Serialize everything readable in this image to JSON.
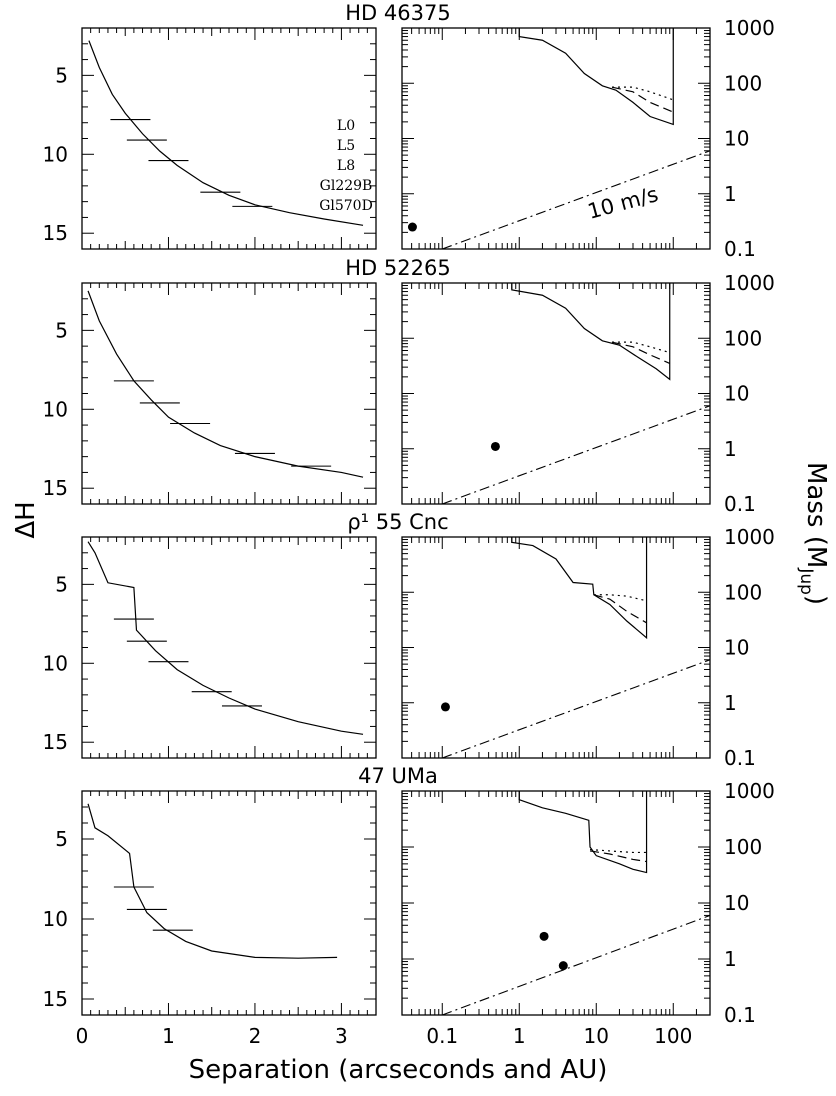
{
  "figure": {
    "ylabel_left": "ΔH",
    "xlabel_bottom": "Separation (arcseconds and AU)",
    "ylabel_right_main": "Mass (M",
    "ylabel_right_sub": "Jup",
    "ylabel_right_close": ")",
    "annotation_10ms": "10 m/s",
    "spectral_labels": [
      "L0",
      "L5",
      "L8",
      "Gl229B",
      "Gl570D"
    ]
  },
  "chart_data": [
    {
      "type": "line",
      "title": "HD 46375",
      "left_panel": {
        "xlim": [
          0,
          3.4
        ],
        "ylim": [
          16,
          2
        ],
        "y_inverted": true,
        "xticks": [
          0,
          1,
          2,
          3
        ],
        "yticks": [
          5,
          10,
          15
        ],
        "curve": [
          [
            0.08,
            2.8
          ],
          [
            0.2,
            4.5
          ],
          [
            0.35,
            6.2
          ],
          [
            0.5,
            7.4
          ],
          [
            0.7,
            8.7
          ],
          [
            0.9,
            9.8
          ],
          [
            1.1,
            10.7
          ],
          [
            1.4,
            11.8
          ],
          [
            1.7,
            12.6
          ],
          [
            2.0,
            13.2
          ],
          [
            2.4,
            13.7
          ],
          [
            2.8,
            14.1
          ],
          [
            3.25,
            14.5
          ]
        ],
        "brown_dwarf_marks": [
          {
            "label": "L0",
            "x": 0.56,
            "dH": 7.8
          },
          {
            "label": "L5",
            "x": 0.75,
            "dH": 9.1
          },
          {
            "label": "L8",
            "x": 1.0,
            "dH": 10.4
          },
          {
            "label": "Gl229B",
            "x": 1.6,
            "dH": 12.4
          },
          {
            "label": "Gl570D",
            "x": 1.97,
            "dH": 13.3
          }
        ]
      },
      "right_panel": {
        "x_scale": "log",
        "y_scale": "log",
        "xlim": [
          0.03,
          300
        ],
        "ylim": [
          0.1,
          1000
        ],
        "xtick_labels": [
          "0.1",
          "1",
          "10",
          "100"
        ],
        "ytick_labels": [
          "1000",
          "100",
          "10",
          "1",
          "0.1"
        ],
        "limit_solid": [
          [
            1.0,
            1000
          ],
          [
            1.0,
            700
          ],
          [
            2,
            600
          ],
          [
            4,
            350
          ],
          [
            7,
            150
          ],
          [
            12,
            90
          ],
          [
            18,
            75
          ],
          [
            30,
            45
          ],
          [
            50,
            25
          ],
          [
            100,
            18
          ],
          [
            100,
            1000
          ]
        ],
        "limit_dotted": [
          [
            16,
            85
          ],
          [
            30,
            85
          ],
          [
            50,
            70
          ],
          [
            100,
            50
          ]
        ],
        "limit_dashed": [
          [
            16,
            85
          ],
          [
            30,
            70
          ],
          [
            50,
            45
          ],
          [
            100,
            30
          ]
        ],
        "rv_line_10ms": [
          [
            0.1,
            0.1
          ],
          [
            300,
            6
          ]
        ],
        "planets": [
          {
            "a_AU": 0.041,
            "mass": 0.25
          }
        ]
      }
    },
    {
      "type": "line",
      "title": "HD 52265",
      "left_panel": {
        "xlim": [
          0,
          3.4
        ],
        "ylim": [
          16,
          2
        ],
        "y_inverted": true,
        "xticks": [
          0,
          1,
          2,
          3
        ],
        "yticks": [
          5,
          10,
          15
        ],
        "curve": [
          [
            0.07,
            2.5
          ],
          [
            0.2,
            4.4
          ],
          [
            0.4,
            6.5
          ],
          [
            0.6,
            8.2
          ],
          [
            0.8,
            9.4
          ],
          [
            1.0,
            10.5
          ],
          [
            1.3,
            11.5
          ],
          [
            1.6,
            12.3
          ],
          [
            2.0,
            13.0
          ],
          [
            2.5,
            13.6
          ],
          [
            3.0,
            14.0
          ],
          [
            3.25,
            14.3
          ]
        ],
        "brown_dwarf_marks": [
          {
            "label": "L0",
            "x": 0.6,
            "dH": 8.2
          },
          {
            "label": "L5",
            "x": 0.9,
            "dH": 9.6
          },
          {
            "label": "L8",
            "x": 1.25,
            "dH": 10.9
          },
          {
            "label": "Gl229B",
            "x": 2.0,
            "dH": 12.8
          },
          {
            "label": "Gl570D",
            "x": 2.65,
            "dH": 13.6
          }
        ]
      },
      "right_panel": {
        "x_scale": "log",
        "y_scale": "log",
        "xlim": [
          0.03,
          300
        ],
        "ylim": [
          0.1,
          1000
        ],
        "xtick_labels": [
          "0.1",
          "1",
          "10",
          "100"
        ],
        "ytick_labels": [
          "1000",
          "100",
          "10",
          "1",
          "0.1"
        ],
        "limit_solid": [
          [
            0.8,
            1000
          ],
          [
            0.8,
            750
          ],
          [
            2,
            600
          ],
          [
            4,
            350
          ],
          [
            7,
            150
          ],
          [
            12,
            90
          ],
          [
            20,
            75
          ],
          [
            35,
            45
          ],
          [
            60,
            28
          ],
          [
            90,
            18
          ],
          [
            90,
            1000
          ]
        ],
        "limit_dotted": [
          [
            16,
            85
          ],
          [
            30,
            85
          ],
          [
            50,
            70
          ],
          [
            90,
            55
          ]
        ],
        "limit_dashed": [
          [
            16,
            85
          ],
          [
            30,
            70
          ],
          [
            50,
            50
          ],
          [
            90,
            35
          ]
        ],
        "rv_line_10ms": [
          [
            0.1,
            0.1
          ],
          [
            300,
            6
          ]
        ],
        "planets": [
          {
            "a_AU": 0.49,
            "mass": 1.1
          }
        ]
      }
    },
    {
      "type": "line",
      "title": "ρ¹ 55 Cnc",
      "left_panel": {
        "xlim": [
          0,
          3.4
        ],
        "ylim": [
          16,
          2
        ],
        "y_inverted": true,
        "xticks": [
          0,
          1,
          2,
          3
        ],
        "yticks": [
          5,
          10,
          15
        ],
        "curve": [
          [
            0.07,
            2.3
          ],
          [
            0.15,
            3.0
          ],
          [
            0.3,
            4.9
          ],
          [
            0.6,
            5.2
          ],
          [
            0.63,
            7.9
          ],
          [
            0.85,
            9.2
          ],
          [
            1.1,
            10.4
          ],
          [
            1.4,
            11.4
          ],
          [
            1.7,
            12.2
          ],
          [
            2.0,
            12.9
          ],
          [
            2.5,
            13.7
          ],
          [
            3.0,
            14.3
          ],
          [
            3.25,
            14.5
          ]
        ],
        "brown_dwarf_marks": [
          {
            "label": "L0",
            "x": 0.6,
            "dH": 7.2
          },
          {
            "label": "L5",
            "x": 0.75,
            "dH": 8.6
          },
          {
            "label": "L8",
            "x": 1.0,
            "dH": 9.9
          },
          {
            "label": "Gl229B",
            "x": 1.5,
            "dH": 11.8
          },
          {
            "label": "Gl570D",
            "x": 1.85,
            "dH": 12.7
          }
        ]
      },
      "right_panel": {
        "x_scale": "log",
        "y_scale": "log",
        "xlim": [
          0.03,
          300
        ],
        "ylim": [
          0.1,
          1000
        ],
        "xtick_labels": [
          "0.1",
          "1",
          "10",
          "100"
        ],
        "ytick_labels": [
          "1000",
          "100",
          "10",
          "1",
          "0.1"
        ],
        "limit_solid": [
          [
            0.8,
            1000
          ],
          [
            0.8,
            800
          ],
          [
            1.5,
            700
          ],
          [
            3,
            400
          ],
          [
            5,
            150
          ],
          [
            9,
            140
          ],
          [
            9.3,
            90
          ],
          [
            15,
            60
          ],
          [
            25,
            30
          ],
          [
            45,
            15
          ],
          [
            45,
            1000
          ]
        ],
        "limit_dotted": [
          [
            9.3,
            90
          ],
          [
            15,
            90
          ],
          [
            25,
            85
          ],
          [
            45,
            70
          ]
        ],
        "limit_dashed": [
          [
            9.3,
            90
          ],
          [
            15,
            75
          ],
          [
            25,
            45
          ],
          [
            45,
            28
          ]
        ],
        "rv_line_10ms": [
          [
            0.1,
            0.1
          ],
          [
            300,
            6
          ]
        ],
        "planets": [
          {
            "a_AU": 0.11,
            "mass": 0.84
          }
        ]
      }
    },
    {
      "type": "line",
      "title": "47 UMa",
      "left_panel": {
        "xlim": [
          0,
          3.4
        ],
        "ylim": [
          16,
          2
        ],
        "y_inverted": true,
        "xticks": [
          0,
          1,
          2,
          3
        ],
        "yticks": [
          5,
          10,
          15
        ],
        "curve": [
          [
            0.07,
            2.8
          ],
          [
            0.15,
            4.3
          ],
          [
            0.3,
            4.8
          ],
          [
            0.55,
            5.9
          ],
          [
            0.6,
            8.0
          ],
          [
            0.75,
            9.6
          ],
          [
            0.95,
            10.6
          ],
          [
            1.2,
            11.4
          ],
          [
            1.5,
            12.0
          ],
          [
            2.0,
            12.4
          ],
          [
            2.5,
            12.45
          ],
          [
            2.95,
            12.4
          ]
        ],
        "brown_dwarf_marks": [
          {
            "label": "L0",
            "x": 0.6,
            "dH": 8.0
          },
          {
            "label": "L5",
            "x": 0.75,
            "dH": 9.4
          },
          {
            "label": "L8",
            "x": 1.05,
            "dH": 10.7
          }
        ]
      },
      "right_panel": {
        "x_scale": "log",
        "y_scale": "log",
        "xlim": [
          0.03,
          300
        ],
        "ylim": [
          0.1,
          1000
        ],
        "xtick_labels": [
          "0.1",
          "1",
          "10",
          "100"
        ],
        "ytick_labels": [
          "1000",
          "100",
          "10",
          "1",
          "0.1"
        ],
        "limit_solid": [
          [
            1.0,
            1000
          ],
          [
            1.0,
            700
          ],
          [
            2,
            500
          ],
          [
            4,
            400
          ],
          [
            8,
            300
          ],
          [
            8.3,
            100
          ],
          [
            10,
            70
          ],
          [
            20,
            50
          ],
          [
            30,
            40
          ],
          [
            45,
            35
          ],
          [
            45,
            1000
          ]
        ],
        "limit_dotted": [
          [
            8.3,
            90
          ],
          [
            15,
            85
          ],
          [
            30,
            80
          ],
          [
            45,
            80
          ]
        ],
        "limit_dashed": [
          [
            8.3,
            85
          ],
          [
            15,
            75
          ],
          [
            30,
            60
          ],
          [
            45,
            55
          ]
        ],
        "rv_line_10ms": [
          [
            0.1,
            0.1
          ],
          [
            300,
            6
          ]
        ],
        "planets": [
          {
            "a_AU": 2.1,
            "mass": 2.54
          },
          {
            "a_AU": 3.73,
            "mass": 0.76
          }
        ]
      }
    }
  ]
}
